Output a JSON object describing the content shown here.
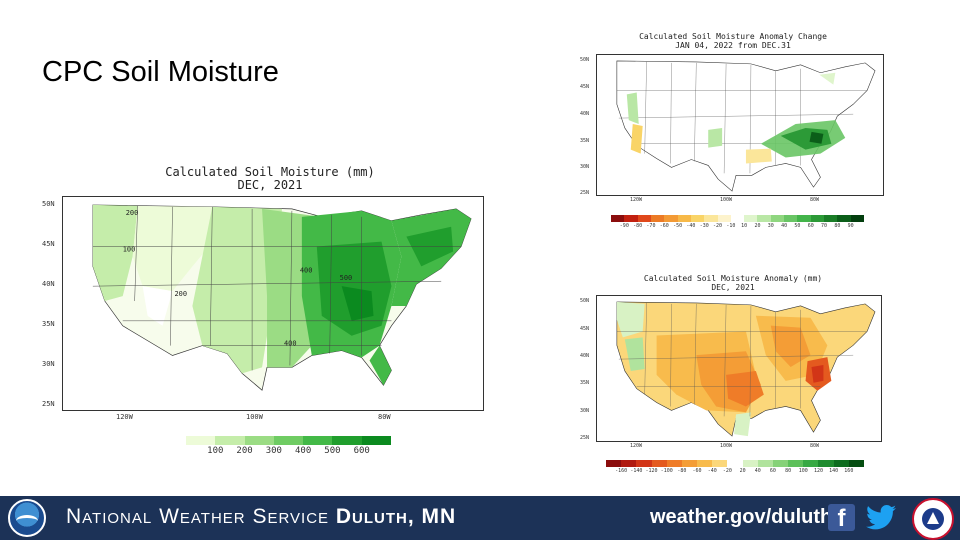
{
  "slide": {
    "title": "CPC Soil Moisture"
  },
  "main_map": {
    "title_line1": "Calculated Soil Moisture (mm)",
    "title_line2": "DEC, 2021",
    "lat_labels": [
      "50N",
      "45N",
      "40N",
      "35N",
      "30N",
      "25N"
    ],
    "lon_labels": [
      "120W",
      "100W",
      "80W"
    ],
    "contour_labels": [
      "200",
      "100",
      "200",
      "400",
      "500",
      "400"
    ],
    "legend_values": [
      "100",
      "200",
      "300",
      "400",
      "500",
      "600"
    ],
    "legend_colors": [
      "#edfbd8",
      "#c5edaa",
      "#9bdc84",
      "#6fcc63",
      "#43b947",
      "#209e2d",
      "#0b8a1f"
    ]
  },
  "anomaly_change_map": {
    "title_line1": "Calculated Soil Moisture Anomaly Change",
    "title_line2": "JAN 04, 2022 from DEC.31",
    "lat_labels": [
      "50N",
      "45N",
      "40N",
      "35N",
      "30N",
      "25N"
    ],
    "lon_labels": [
      "120W",
      "100W",
      "80W"
    ],
    "legend_values": [
      "-90",
      "-80",
      "-70",
      "-60",
      "-50",
      "-40",
      "-30",
      "-20",
      "-10",
      "10",
      "20",
      "30",
      "40",
      "50",
      "60",
      "70",
      "80",
      "90"
    ],
    "legend_colors": [
      "#8b0d0d",
      "#c22010",
      "#e0481b",
      "#ec7a25",
      "#f39a35",
      "#f7b948",
      "#f9d467",
      "#fbe69a",
      "#fdf3cc",
      "#ffffff",
      "#dff5cc",
      "#b9e7a5",
      "#8fd67f",
      "#69c565",
      "#43b44a",
      "#2c9a37",
      "#1a7d27",
      "#0b5e19",
      "#033e0e"
    ]
  },
  "anomaly_map": {
    "title_line1": "Calculated Soil Moisture Anomaly (mm)",
    "title_line2": "DEC, 2021",
    "lat_labels": [
      "50N",
      "45N",
      "40N",
      "35N",
      "30N",
      "25N"
    ],
    "lon_labels": [
      "120W",
      "100W",
      "80W"
    ],
    "legend_values": [
      "-160",
      "-140",
      "-120",
      "-100",
      "-80",
      "-60",
      "-40",
      "-20",
      "20",
      "40",
      "60",
      "80",
      "100",
      "120",
      "140",
      "160"
    ],
    "legend_colors": [
      "#8b0d0d",
      "#b01a10",
      "#d23517",
      "#e45a1f",
      "#ef7c28",
      "#f49d36",
      "#f8bb4c",
      "#fbd77a",
      "#ffffff",
      "#d8f2c4",
      "#b0e39d",
      "#86d278",
      "#5dc05a",
      "#37a943",
      "#1e8b2e",
      "#0d6d1e",
      "#044d11"
    ]
  },
  "footer": {
    "org_prefix": "National Weather Service",
    "org_office": "Duluth, MN",
    "url": "weather.gov/duluth",
    "facebook_icon": "facebook-icon",
    "twitter_icon": "twitter-icon",
    "noaa_logo": "noaa-logo",
    "nws_logo": "nws-logo",
    "background": "#1c3257"
  }
}
